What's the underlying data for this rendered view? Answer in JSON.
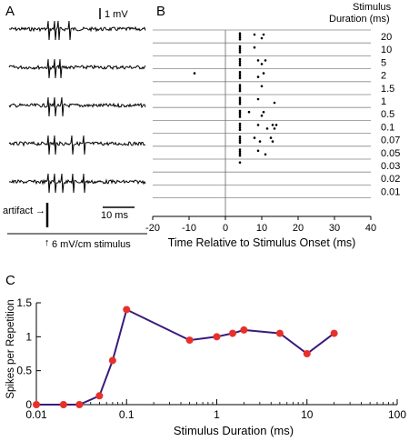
{
  "panels": {
    "A": {
      "letter": "A",
      "scale_bar_voltage": "1 mV",
      "scale_bar_time": "10 ms",
      "artifact_label": "artifact",
      "artifact_arrow": "→",
      "stimulus_label": "6 mV/cm stimulus",
      "stimulus_glyph": "↑"
    },
    "B": {
      "letter": "B",
      "legend_title_line1": "Stimulus",
      "legend_title_line2": "Duration (ms)"
    },
    "C": {
      "letter": "C"
    }
  },
  "chart_data": [
    {
      "panel": "B",
      "type": "scatter",
      "xlabel": "Time Relative to Stimulus Onset (ms)",
      "ylabel": "",
      "xlim": [
        -20,
        40
      ],
      "xticks": [
        -20,
        -10,
        0,
        10,
        20,
        30,
        40
      ],
      "grid": "horizontal row separators",
      "rows": [
        "20",
        "10",
        "5",
        "2",
        "1.5",
        "1",
        "0.5",
        "0.1",
        "0.07",
        "0.05",
        "0.03",
        "0.02",
        "0.01"
      ],
      "spikes": [
        [
          4,
          4,
          4,
          4,
          8,
          10,
          10.5
        ],
        [
          4,
          4,
          4,
          4,
          8
        ],
        [
          4,
          4,
          4,
          4,
          9,
          10,
          11
        ],
        [
          -8.5,
          4,
          4,
          4,
          4,
          9,
          10.5
        ],
        [
          4,
          4,
          4,
          4,
          10
        ],
        [
          4,
          4,
          4,
          4,
          9,
          13.5
        ],
        [
          4,
          4,
          4,
          4,
          6.5,
          10,
          10.5
        ],
        [
          4,
          4,
          4,
          4,
          9,
          11.5,
          13,
          13.5,
          14
        ],
        [
          4,
          4,
          4,
          4,
          8,
          9.5,
          12.5,
          13
        ],
        [
          4,
          4,
          4,
          4,
          9,
          11
        ],
        [
          4
        ],
        [],
        []
      ]
    },
    {
      "panel": "C",
      "type": "line",
      "title": "",
      "xlabel": "Stimulus Duration (ms)",
      "ylabel": "Spikes per Repetition",
      "xscale": "log",
      "xlim": [
        0.01,
        100
      ],
      "ylim": [
        0,
        1.5
      ],
      "xticks": [
        "0.01",
        "0.1",
        "1",
        "10",
        "100"
      ],
      "yticks": [
        "0",
        "0.5",
        "1",
        "1.5"
      ],
      "x": [
        0.01,
        0.02,
        0.03,
        0.05,
        0.07,
        0.1,
        0.5,
        1,
        1.5,
        2,
        5,
        10,
        20
      ],
      "y": [
        0,
        0,
        0,
        0.13,
        0.65,
        1.4,
        0.95,
        1.0,
        1.05,
        1.1,
        1.05,
        0.75,
        1.05
      ],
      "colors": {
        "line": "#3a1a7a",
        "marker": "#e8302a"
      }
    }
  ],
  "traces": {
    "count": 5,
    "color": "#000000"
  }
}
